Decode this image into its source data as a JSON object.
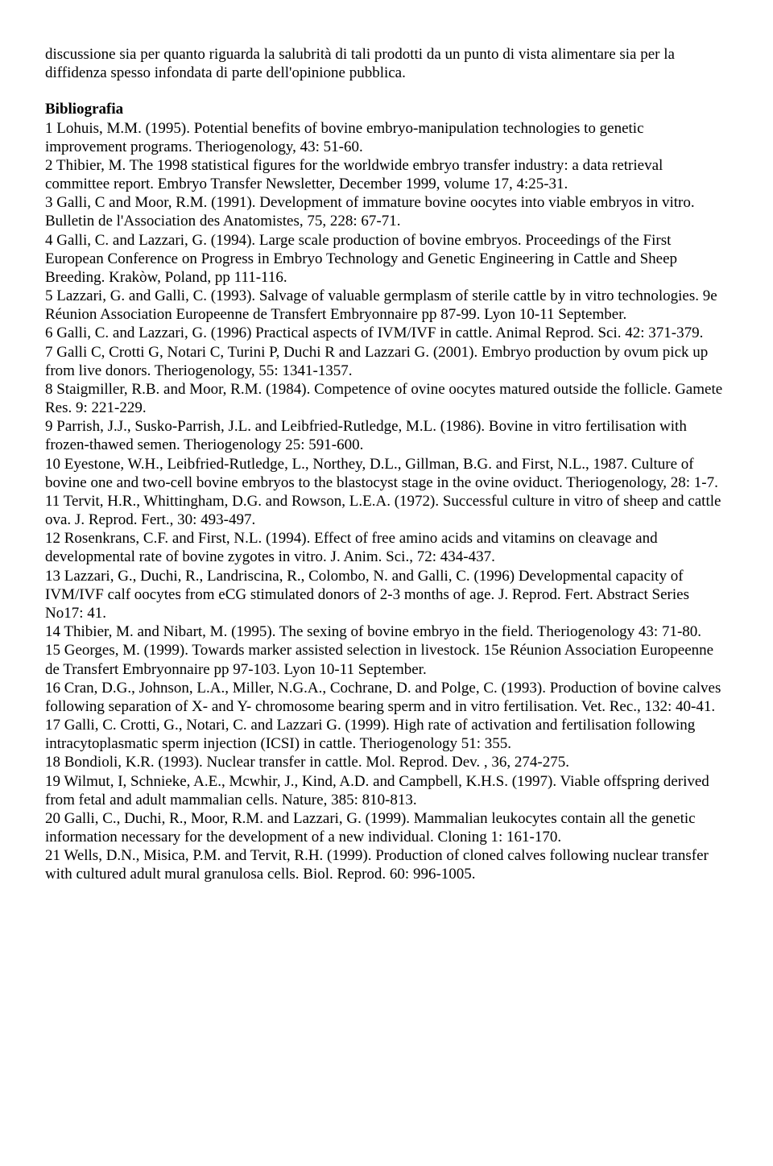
{
  "intro": "discussione  sia per quanto riguarda la salubrità di tali prodotti da un punto di vista alimentare sia per la diffidenza spesso infondata di parte dell'opinione pubblica.",
  "heading": "Bibliografia",
  "refs": [
    "1 Lohuis, M.M. (1995). Potential benefits of bovine embryo-manipulation technologies to genetic improvement programs. Theriogenology, 43: 51-60.",
    "2 Thibier, M. The 1998 statistical figures for the worldwide embryo transfer industry: a data retrieval committee report. Embryo Transfer Newsletter, December 1999, volume 17, 4:25-31.",
    "3 Galli, C and Moor, R.M. (1991). Development of immature bovine oocytes into viable embryos in vitro. Bulletin de l'Association des Anatomistes, 75, 228: 67-71.",
    "4 Galli, C. and Lazzari, G. (1994). Large scale production of bovine embryos. Proceedings of the First European Conference on Progress in Embryo Technology and Genetic Engineering in Cattle and Sheep Breeding. Krakòw, Poland, pp 111-116.",
    "5 Lazzari, G. and Galli, C. (1993). Salvage of valuable germplasm of sterile cattle by in vitro technologies. 9e Réunion Association Europeenne de Transfert Embryonnaire pp 87-99. Lyon 10-11 September.",
    "6 Galli, C. and Lazzari, G. (1996) Practical aspects of IVM/IVF in cattle. Animal Reprod. Sci. 42: 371-379.",
    "7 Galli C, Crotti G, Notari C, Turini P, Duchi R and Lazzari G. (2001). Embryo production by ovum pick up from live donors. Theriogenology, 55: 1341-1357.",
    "8 Staigmiller, R.B. and Moor, R.M. (1984). Competence of ovine oocytes matured outside the follicle. Gamete Res. 9: 221-229.",
    "9 Parrish, J.J., Susko-Parrish, J.L. and Leibfried-Rutledge, M.L. (1986). Bovine in vitro fertilisation with frozen-thawed semen. Theriogenology 25: 591-600.",
    "10 Eyestone, W.H., Leibfried-Rutledge, L., Northey, D.L., Gillman, B.G. and First, N.L., 1987. Culture of bovine one and two-cell bovine embryos to the blastocyst stage in the ovine oviduct. Theriogenology, 28: 1-7.",
    "11 Tervit, H.R., Whittingham, D.G. and Rowson, L.E.A. (1972). Successful culture in vitro of sheep and cattle ova. J. Reprod. Fert., 30: 493-497.",
    "12 Rosenkrans, C.F. and First, N.L. (1994). Effect of free amino acids and vitamins on cleavage and developmental rate of bovine zygotes in vitro. J. Anim. Sci., 72: 434-437.",
    "13 Lazzari, G., Duchi, R., Landriscina, R., Colombo, N. and Galli, C. (1996) Developmental capacity of IVM/IVF calf oocytes from eCG stimulated donors of 2-3 months of age. J. Reprod. Fert. Abstract Series No17: 41.",
    "14 Thibier, M. and Nibart, M. (1995). The sexing of bovine embryo in the field. Theriogenology 43: 71-80.",
    "15 Georges, M. (1999). Towards marker assisted selection in livestock. 15e Réunion Association Europeenne de Transfert Embryonnaire pp 97-103. Lyon 10-11 September.",
    "16 Cran, D.G., Johnson, L.A., Miller, N.G.A., Cochrane, D. and Polge, C. (1993). Production of bovine calves following separation of X- and Y- chromosome bearing sperm and in vitro fertilisation. Vet. Rec., 132: 40-41.",
    "17 Galli, C.  Crotti, G., Notari, C. and Lazzari G. (1999). High rate of activation and fertilisation following intracytoplasmatic sperm injection (ICSI) in cattle. Theriogenology 51: 355.",
    "18 Bondioli, K.R. (1993). Nuclear transfer in cattle. Mol. Reprod. Dev. , 36, 274-275.",
    "19 Wilmut, I, Schnieke, A.E., Mcwhir, J., Kind, A.D. and Campbell, K.H.S. (1997). Viable offspring derived from fetal and adult mammalian cells. Nature, 385: 810-813.",
    "20 Galli, C., Duchi, R., Moor, R.M. and Lazzari, G. (1999). Mammalian leukocytes contain all the genetic information necessary for the development of a new individual. Cloning 1: 161-170.",
    "21 Wells, D.N., Misica, P.M. and Tervit, R.H. (1999). Production of cloned calves following nuclear transfer with cultured adult mural granulosa cells. Biol. Reprod. 60: 996-1005."
  ]
}
